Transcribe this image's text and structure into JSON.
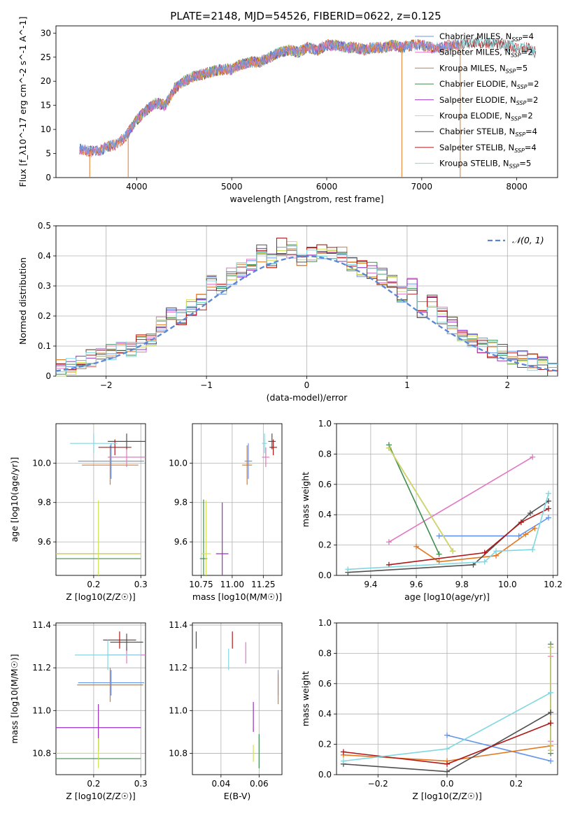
{
  "figure_title": "PLATE=2148, MJD=54526, FIBERID=0622, z=0.125",
  "colors": {
    "Chabrier MILES": "#6495ed",
    "Salpeter MILES": "#e377c2",
    "Kroupa MILES": "#e4781f",
    "Chabrier ELODIE": "#3e8e4e",
    "Salpeter ELODIE": "#9a2ec0",
    "Kroupa ELODIE": "#cfe05a",
    "Chabrier STELIB": "#505050",
    "Salpeter STELIB": "#b01818",
    "Kroupa STELIB": "#7fd8e0"
  },
  "chart_data": [
    {
      "id": "spectrum",
      "type": "line",
      "xlabel": "wavelength [Angstrom, rest frame]",
      "ylabel": "Flux [f_λ10^-17 erg cm^-2 s^-1 A^-1]",
      "xlim": [
        3150,
        8430
      ],
      "ylim": [
        0,
        31.5
      ],
      "xticks": [
        4000,
        5000,
        6000,
        7000,
        8000
      ],
      "yticks": [
        0,
        5,
        10,
        15,
        20,
        25,
        30
      ],
      "legend_position": "upper-right",
      "legend": [
        {
          "model": "Chabrier MILES",
          "nssp": "4"
        },
        {
          "model": "Salpeter MILES",
          "nssp": "2"
        },
        {
          "model": "Kroupa MILES",
          "nssp": "5"
        },
        {
          "model": "Chabrier ELODIE",
          "nssp": "2"
        },
        {
          "model": "Salpeter ELODIE",
          "nssp": "2"
        },
        {
          "model": "Kroupa ELODIE",
          "nssp": "2"
        },
        {
          "model": "Chabrier STELIB",
          "nssp": "4"
        },
        {
          "model": "Salpeter STELIB",
          "nssp": "4"
        },
        {
          "model": "Kroupa STELIB",
          "nssp": "5"
        }
      ],
      "continuum": {
        "x": [
          3400,
          3500,
          3600,
          3700,
          3800,
          3900,
          4000,
          4100,
          4200,
          4300,
          4400,
          4500,
          4600,
          4700,
          4800,
          4900,
          5000,
          5100,
          5200,
          5300,
          5400,
          5500,
          5600,
          5700,
          5800,
          5900,
          6000,
          6100,
          6200,
          6300,
          6400,
          6500,
          6600,
          6700,
          6800,
          6900,
          7000,
          7100,
          7200,
          7300,
          7400,
          7500,
          7600,
          7700,
          7800,
          7900,
          8000,
          8100,
          8200
        ],
        "y": [
          6,
          5.5,
          5.5,
          6.5,
          7,
          9,
          12,
          14,
          15.5,
          15,
          18.5,
          20,
          21,
          21.5,
          22,
          22.5,
          22.5,
          23.5,
          24,
          24,
          25,
          26,
          26.5,
          26,
          27,
          26.5,
          27.5,
          27.5,
          27,
          27,
          26.5,
          27,
          27,
          27.5,
          27,
          27.5,
          27.5,
          27,
          27,
          27.5,
          27.5,
          28,
          28,
          28,
          27.5,
          27.5,
          27,
          27,
          26
        ]
      },
      "drops": [
        3505,
        3910,
        6790,
        7405
      ]
    },
    {
      "id": "residuals",
      "type": "bar",
      "xlabel": "(data-model)/error",
      "ylabel": "Normed distribution",
      "xlim": [
        -2.5,
        2.5
      ],
      "ylim": [
        0,
        0.5
      ],
      "xticks": [
        -2,
        -1,
        0,
        1,
        2
      ],
      "yticks": [
        0.0,
        0.1,
        0.2,
        0.3,
        0.4,
        0.5
      ],
      "grid": true,
      "legend_position": "upper-right",
      "gaussian_label": "𝒩(0, 1)",
      "bins": [
        -2.5,
        -2.4,
        -2.3,
        -2.2,
        -2.1,
        -2.0,
        -1.9,
        -1.8,
        -1.7,
        -1.6,
        -1.5,
        -1.4,
        -1.3,
        -1.2,
        -1.1,
        -1.0,
        -0.9,
        -0.8,
        -0.7,
        -0.6,
        -0.5,
        -0.4,
        -0.3,
        -0.2,
        -0.1,
        0.0,
        0.1,
        0.2,
        0.3,
        0.4,
        0.5,
        0.6,
        0.7,
        0.8,
        0.9,
        1.0,
        1.1,
        1.2,
        1.3,
        1.4,
        1.5,
        1.6,
        1.7,
        1.8,
        1.9,
        2.0,
        2.1,
        2.2,
        2.3,
        2.4,
        2.5
      ],
      "histogram": [
        0.03,
        0.035,
        0.045,
        0.06,
        0.065,
        0.08,
        0.085,
        0.09,
        0.11,
        0.12,
        0.17,
        0.21,
        0.2,
        0.23,
        0.25,
        0.31,
        0.28,
        0.33,
        0.35,
        0.37,
        0.41,
        0.39,
        0.43,
        0.42,
        0.38,
        0.41,
        0.42,
        0.41,
        0.4,
        0.38,
        0.36,
        0.35,
        0.33,
        0.31,
        0.27,
        0.3,
        0.22,
        0.24,
        0.2,
        0.17,
        0.14,
        0.12,
        0.1,
        0.09,
        0.08,
        0.065,
        0.055,
        0.045,
        0.035,
        0.025
      ]
    },
    {
      "id": "age-vs-z",
      "type": "scatter",
      "xlabel": "Z [log10(Z/Z☉)]",
      "ylabel": "age  [log10(age/yr)]",
      "xlim": [
        0.12,
        0.31
      ],
      "ylim": [
        9.43,
        10.2
      ],
      "xticks": [
        0.2,
        0.3
      ],
      "xtick_labels": [
        "0.2",
        "0.3"
      ],
      "yticks": [
        9.6,
        9.8,
        10.0
      ],
      "ytick_labels": [
        "9.6",
        "9.8",
        "10.0"
      ],
      "grid": true,
      "points": [
        {
          "model": "Chabrier MILES",
          "x": 0.237,
          "y": 10.01,
          "xerr": 0.07,
          "yerr": 0.09
        },
        {
          "model": "Salpeter MILES",
          "x": 0.27,
          "y": 10.03,
          "xerr": 0.04,
          "yerr": 0.05
        },
        {
          "model": "Kroupa MILES",
          "x": 0.235,
          "y": 9.99,
          "xerr": 0.06,
          "yerr": 0.1
        },
        {
          "model": "Chabrier ELODIE",
          "x": 0.21,
          "y": 9.515,
          "xerr": 0.09,
          "yerr": 0.0
        },
        {
          "model": "Salpeter ELODIE",
          "x": 0.21,
          "y": 9.54,
          "xerr": 0.09,
          "yerr": 0.0
        },
        {
          "model": "Kroupa ELODIE",
          "x": 0.21,
          "y": 9.54,
          "xerr": 0.09,
          "yerr": 0.27
        },
        {
          "model": "Chabrier STELIB",
          "x": 0.27,
          "y": 10.11,
          "xerr": 0.04,
          "yerr": 0.04
        },
        {
          "model": "Salpeter STELIB",
          "x": 0.245,
          "y": 10.08,
          "xerr": 0.035,
          "yerr": 0.04
        },
        {
          "model": "Kroupa STELIB",
          "x": 0.2,
          "y": 10.1,
          "xerr": 0.05,
          "yerr": 0.05
        }
      ]
    },
    {
      "id": "age-vs-mass",
      "type": "scatter",
      "xlabel": "mass [log10(M/M☉)]",
      "ylabel": "",
      "xlim": [
        10.68,
        11.4
      ],
      "ylim": [
        9.43,
        10.2
      ],
      "xticks": [
        10.75,
        11.0,
        11.25
      ],
      "xtick_labels": [
        "10.75",
        "11.00",
        "11.25"
      ],
      "yticks": [
        9.6,
        9.8,
        10.0
      ],
      "ytick_labels": [
        "9.6",
        "9.8",
        "10.0"
      ],
      "grid": true,
      "points": [
        {
          "model": "Chabrier MILES",
          "x": 11.13,
          "y": 10.01,
          "xerr": 0.03,
          "yerr": 0.09
        },
        {
          "model": "Salpeter MILES",
          "x": 11.27,
          "y": 10.03,
          "xerr": 0.03,
          "yerr": 0.05
        },
        {
          "model": "Kroupa MILES",
          "x": 11.12,
          "y": 9.99,
          "xerr": 0.04,
          "yerr": 0.1
        },
        {
          "model": "Chabrier ELODIE",
          "x": 10.77,
          "y": 9.515,
          "xerr": 0.03,
          "yerr": 0.3
        },
        {
          "model": "Salpeter ELODIE",
          "x": 10.92,
          "y": 9.54,
          "xerr": 0.05,
          "yerr": 0.26
        },
        {
          "model": "Kroupa ELODIE",
          "x": 10.79,
          "y": 9.54,
          "xerr": 0.04,
          "yerr": 0.27
        },
        {
          "model": "Chabrier STELIB",
          "x": 11.32,
          "y": 10.11,
          "xerr": 0.03,
          "yerr": 0.04
        },
        {
          "model": "Salpeter STELIB",
          "x": 11.33,
          "y": 10.08,
          "xerr": 0.03,
          "yerr": 0.04
        },
        {
          "model": "Kroupa STELIB",
          "x": 11.26,
          "y": 10.1,
          "xerr": 0.02,
          "yerr": 0.05
        }
      ]
    },
    {
      "id": "weight-vs-age",
      "type": "line",
      "xlabel": "age  [log10(age/yr)]",
      "ylabel": "mass weight",
      "xlim": [
        9.25,
        10.22
      ],
      "ylim": [
        0,
        1
      ],
      "xticks": [
        9.4,
        9.6,
        9.8,
        10.0,
        10.2
      ],
      "xtick_labels": [
        "9.4",
        "9.6",
        "9.8",
        "10.0",
        "10.2"
      ],
      "yticks": [
        0,
        0.2,
        0.4,
        0.6,
        0.8,
        1.0
      ],
      "ytick_labels": [
        "0.0",
        "0.2",
        "0.4",
        "0.6",
        "0.8",
        "1.0"
      ],
      "grid": true,
      "series": [
        {
          "model": "Chabrier MILES",
          "x": [
            9.7,
            10.05,
            10.18
          ],
          "y": [
            0.26,
            0.26,
            0.38
          ]
        },
        {
          "model": "Salpeter MILES",
          "x": [
            9.48,
            10.11
          ],
          "y": [
            0.22,
            0.78
          ]
        },
        {
          "model": "Kroupa MILES",
          "x": [
            9.6,
            9.7,
            9.95,
            10.08,
            10.12
          ],
          "y": [
            0.19,
            0.09,
            0.13,
            0.27,
            0.31
          ]
        },
        {
          "model": "Chabrier ELODIE",
          "x": [
            9.48,
            9.7
          ],
          "y": [
            0.86,
            0.14
          ]
        },
        {
          "model": "Salpeter ELODIE",
          "x": [
            9.48,
            9.76
          ],
          "y": [
            0.84,
            0.16
          ]
        },
        {
          "model": "Kroupa ELODIE",
          "x": [
            9.48,
            9.76
          ],
          "y": [
            0.84,
            0.16
          ]
        },
        {
          "model": "Chabrier STELIB",
          "x": [
            9.3,
            9.85,
            10.1,
            10.18
          ],
          "y": [
            0.02,
            0.07,
            0.41,
            0.49
          ]
        },
        {
          "model": "Salpeter STELIB",
          "x": [
            9.48,
            9.9,
            10.06,
            10.18
          ],
          "y": [
            0.07,
            0.15,
            0.35,
            0.44
          ]
        },
        {
          "model": "Kroupa STELIB",
          "x": [
            9.3,
            9.9,
            9.95,
            10.11,
            10.18
          ],
          "y": [
            0.04,
            0.09,
            0.16,
            0.17,
            0.54
          ]
        }
      ]
    },
    {
      "id": "mass-vs-z",
      "type": "scatter",
      "xlabel": "Z [log10(Z/Z☉)]",
      "ylabel": "mass [log10(M/M☉)]",
      "xlim": [
        0.12,
        0.31
      ],
      "ylim": [
        10.7,
        11.41
      ],
      "xticks": [
        0.2,
        0.3
      ],
      "xtick_labels": [
        "0.2",
        "0.3"
      ],
      "yticks": [
        10.8,
        11.0,
        11.2,
        11.4
      ],
      "ytick_labels": [
        "10.8",
        "11.0",
        "11.2",
        "11.4"
      ],
      "grid": true,
      "points": [
        {
          "model": "Chabrier MILES",
          "x": 0.237,
          "y": 11.13,
          "xerr": 0.07,
          "yerr": 0.06
        },
        {
          "model": "Salpeter MILES",
          "x": 0.27,
          "y": 11.26,
          "xerr": 0.04,
          "yerr": 0.04
        },
        {
          "model": "Kroupa MILES",
          "x": 0.235,
          "y": 11.12,
          "xerr": 0.07,
          "yerr": 0.08
        },
        {
          "model": "Chabrier ELODIE",
          "x": 0.21,
          "y": 10.775,
          "xerr": 0.09,
          "yerr": 0.0
        },
        {
          "model": "Salpeter ELODIE",
          "x": 0.21,
          "y": 10.92,
          "xerr": 0.09,
          "yerr": 0.11
        },
        {
          "model": "Kroupa ELODIE",
          "x": 0.21,
          "y": 10.8,
          "xerr": 0.09,
          "yerr": 0.07
        },
        {
          "model": "Chabrier STELIB",
          "x": 0.27,
          "y": 11.32,
          "xerr": 0.035,
          "yerr": 0.04
        },
        {
          "model": "Salpeter STELIB",
          "x": 0.255,
          "y": 11.33,
          "xerr": 0.035,
          "yerr": 0.04
        },
        {
          "model": "Kroupa STELIB",
          "x": 0.23,
          "y": 11.26,
          "xerr": 0.07,
          "yerr": 0.07
        }
      ]
    },
    {
      "id": "mass-vs-ebv",
      "type": "scatter",
      "xlabel": "E(B-V)",
      "ylabel": "",
      "xlim": [
        0.025,
        0.072
      ],
      "ylim": [
        10.7,
        11.41
      ],
      "xticks": [
        0.04,
        0.06
      ],
      "xtick_labels": [
        "0.04",
        "0.06"
      ],
      "yticks": [
        10.8,
        11.0,
        11.2,
        11.4
      ],
      "ytick_labels": [
        "10.8",
        "11.0",
        "11.2",
        "11.4"
      ],
      "grid": true,
      "points": [
        {
          "model": "Chabrier MILES",
          "x": 0.07,
          "y": 11.13,
          "xerr": 0.0,
          "yerr": 0.06
        },
        {
          "model": "Salpeter MILES",
          "x": 0.053,
          "y": 11.27,
          "xerr": 0.0,
          "yerr": 0.05
        },
        {
          "model": "Kroupa MILES",
          "x": 0.07,
          "y": 11.1,
          "xerr": 0.0,
          "yerr": 0.07
        },
        {
          "model": "Chabrier ELODIE",
          "x": 0.06,
          "y": 10.81,
          "xerr": 0.0,
          "yerr": 0.08
        },
        {
          "model": "Salpeter ELODIE",
          "x": 0.057,
          "y": 10.97,
          "xerr": 0.0,
          "yerr": 0.07
        },
        {
          "model": "Kroupa ELODIE",
          "x": 0.057,
          "y": 10.8,
          "xerr": 0.0,
          "yerr": 0.04
        },
        {
          "model": "Chabrier STELIB",
          "x": 0.027,
          "y": 11.33,
          "xerr": 0.0,
          "yerr": 0.04
        },
        {
          "model": "Salpeter STELIB",
          "x": 0.046,
          "y": 11.33,
          "xerr": 0.0,
          "yerr": 0.04
        },
        {
          "model": "Kroupa STELIB",
          "x": 0.044,
          "y": 11.24,
          "xerr": 0.0,
          "yerr": 0.05
        }
      ]
    },
    {
      "id": "weight-vs-z",
      "type": "line",
      "xlabel": "Z [log10(Z/Z☉)]",
      "ylabel": "mass weight",
      "xlim": [
        -0.32,
        0.32
      ],
      "ylim": [
        0,
        1
      ],
      "xticks": [
        -0.2,
        0.0,
        0.2
      ],
      "xtick_labels": [
        "−0.2",
        "0.0",
        "0.2"
      ],
      "yticks": [
        0,
        0.2,
        0.4,
        0.6,
        0.8,
        1.0
      ],
      "ytick_labels": [
        "0.0",
        "0.2",
        "0.4",
        "0.6",
        "0.8",
        "1.0"
      ],
      "grid": true,
      "series": [
        {
          "model": "Chabrier MILES",
          "x": [
            0.0,
            0.3
          ],
          "y": [
            0.26,
            0.09
          ]
        },
        {
          "model": "Salpeter MILES",
          "x": [
            0.3,
            0.3
          ],
          "y": [
            0.22,
            0.78
          ]
        },
        {
          "model": "Kroupa MILES",
          "x": [
            -0.3,
            0.0,
            0.3
          ],
          "y": [
            0.13,
            0.09,
            0.19
          ]
        },
        {
          "model": "Chabrier ELODIE",
          "x": [
            0.3,
            0.3
          ],
          "y": [
            0.14,
            0.86
          ]
        },
        {
          "model": "Salpeter ELODIE",
          "x": [
            0.3,
            0.3
          ],
          "y": [
            0.16,
            0.84
          ]
        },
        {
          "model": "Kroupa ELODIE",
          "x": [
            0.3,
            0.3
          ],
          "y": [
            0.16,
            0.84
          ]
        },
        {
          "model": "Chabrier STELIB",
          "x": [
            -0.3,
            0.0,
            0.3
          ],
          "y": [
            0.07,
            0.02,
            0.41
          ]
        },
        {
          "model": "Salpeter STELIB",
          "x": [
            -0.3,
            0.0,
            0.3
          ],
          "y": [
            0.15,
            0.07,
            0.34
          ]
        },
        {
          "model": "Kroupa STELIB",
          "x": [
            -0.3,
            0.0,
            0.3
          ],
          "y": [
            0.09,
            0.17,
            0.54
          ]
        }
      ]
    }
  ]
}
